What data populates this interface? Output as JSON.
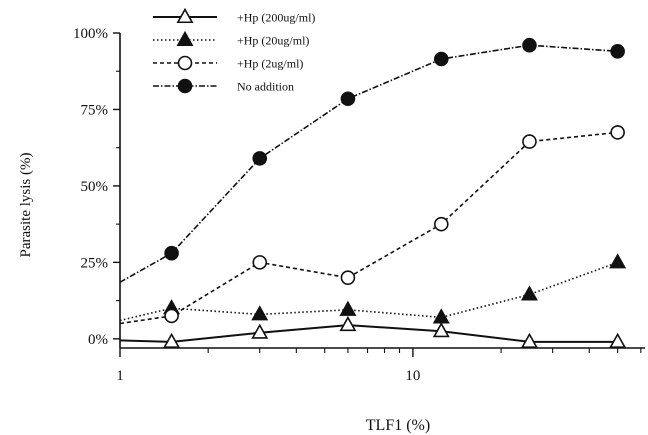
{
  "chart_data": {
    "type": "line",
    "xlabel": "TLF1 (%)",
    "ylabel": "Parasite lysis (%)",
    "xscale": "log",
    "xlim": [
      1,
      62
    ],
    "ylim": [
      -3,
      100
    ],
    "x_ticks": [
      {
        "value": 1,
        "label": "1"
      },
      {
        "value": 10,
        "label": "10"
      }
    ],
    "y_ticks": [
      {
        "value": 0,
        "label": "0%"
      },
      {
        "value": 25,
        "label": "25%"
      },
      {
        "value": 50,
        "label": "50%"
      },
      {
        "value": 75,
        "label": "75%"
      },
      {
        "value": 100,
        "label": "100%"
      }
    ],
    "legend_position": "top-left",
    "series": [
      {
        "name": "+Hp (200ug/ml)",
        "marker": "triangle-open",
        "line": "solid",
        "x": [
          1,
          1.5,
          3,
          6,
          12.5,
          25,
          50
        ],
        "y": [
          -0.5,
          -1,
          2,
          4.5,
          2.5,
          -1,
          -1
        ]
      },
      {
        "name": "+Hp (20ug/ml)",
        "marker": "triangle-filled",
        "line": "dotted",
        "x": [
          1,
          1.5,
          3,
          6,
          12.5,
          25,
          50
        ],
        "y": [
          6,
          10,
          8,
          9.5,
          7,
          14.5,
          25
        ]
      },
      {
        "name": "+Hp (2ug/ml)",
        "marker": "circle-open",
        "line": "dashed",
        "x": [
          1,
          1.5,
          3,
          6,
          12.5,
          25,
          50
        ],
        "y": [
          5,
          7.5,
          25,
          20,
          37.5,
          64.5,
          67.5
        ]
      },
      {
        "name": "No addition",
        "marker": "circle-filled",
        "line": "dashdot",
        "x": [
          1,
          1.5,
          3,
          6,
          12.5,
          25,
          50
        ],
        "y": [
          18.5,
          28,
          59,
          78.5,
          91.5,
          96,
          94
        ]
      }
    ]
  }
}
